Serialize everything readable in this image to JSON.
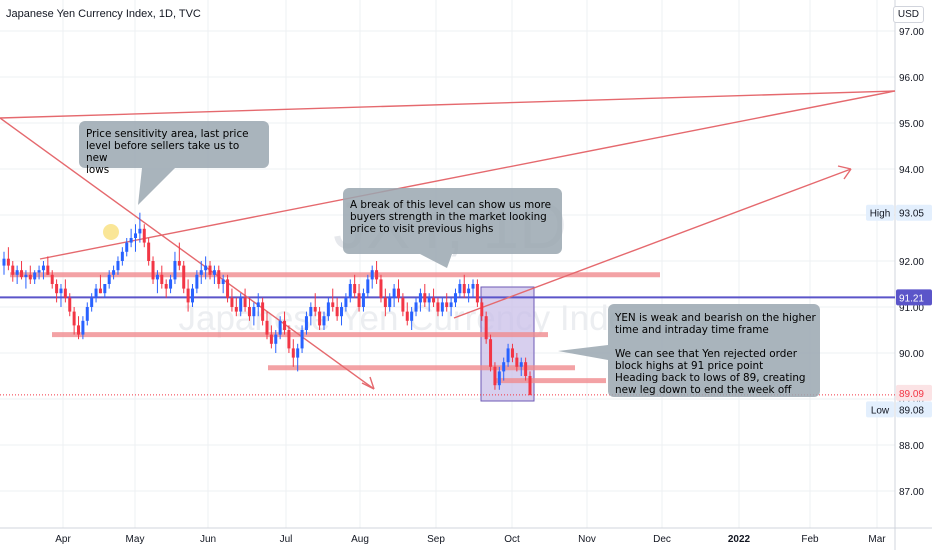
{
  "header": {
    "title": "Japanese Yen Currency Index, 1D, TVC",
    "currency": "USD"
  },
  "watermark": {
    "symbol": "JXY, 1D",
    "name": "Japanese Yen Currency Index"
  },
  "colors": {
    "up": "#2962ff",
    "down": "#f23645",
    "annotation": "#e5696e",
    "zone": "#f08b8e",
    "callout_bg": "#9aa7b0",
    "box_fill": "#c9bfe8",
    "box_stroke": "#6e5ab6",
    "price_line": "#5b55c9",
    "grid": "#eef0f3"
  },
  "chart_data": {
    "type": "candlestick",
    "title": "Japanese Yen Currency Index, 1D, TVC",
    "ylim": [
      86.3,
      97.4
    ],
    "y_ticks": [
      "97.00",
      "96.00",
      "95.00",
      "94.00",
      "93.00",
      "92.00",
      "91.00",
      "90.00",
      "89.00",
      "88.00",
      "87.00"
    ],
    "x_ticks": [
      "Apr",
      "May",
      "Jun",
      "Jul",
      "Aug",
      "Sep",
      "Oct",
      "Nov",
      "Dec",
      "2022",
      "Feb",
      "Mar"
    ],
    "price_labels": {
      "high_label": "High",
      "high_value": "93.05",
      "current_value": "91.21",
      "last_value": "89.09",
      "low_label": "Low",
      "low_value": "89.08"
    },
    "candles_ohlc": [
      [
        91.9,
        92.2,
        91.7,
        92.05
      ],
      [
        92.05,
        92.3,
        91.8,
        91.9
      ],
      [
        91.9,
        92.0,
        91.55,
        91.7
      ],
      [
        91.7,
        91.9,
        91.5,
        91.8
      ],
      [
        91.8,
        92.0,
        91.6,
        91.65
      ],
      [
        91.65,
        91.8,
        91.4,
        91.7
      ],
      [
        91.7,
        91.9,
        91.5,
        91.6
      ],
      [
        91.6,
        91.8,
        91.5,
        91.75
      ],
      [
        91.75,
        91.9,
        91.6,
        91.8
      ],
      [
        91.8,
        92.0,
        91.6,
        91.9
      ],
      [
        91.9,
        92.1,
        91.7,
        91.7
      ],
      [
        91.7,
        91.8,
        91.4,
        91.5
      ],
      [
        91.5,
        91.6,
        91.1,
        91.3
      ],
      [
        91.3,
        91.5,
        91.0,
        91.4
      ],
      [
        91.4,
        91.6,
        91.1,
        91.2
      ],
      [
        91.2,
        91.3,
        90.8,
        90.9
      ],
      [
        90.9,
        91.0,
        90.4,
        90.6
      ],
      [
        90.6,
        90.8,
        90.3,
        90.4
      ],
      [
        90.4,
        90.8,
        90.3,
        90.7
      ],
      [
        90.7,
        91.1,
        90.6,
        91.0
      ],
      [
        91.0,
        91.3,
        90.9,
        91.2
      ],
      [
        91.2,
        91.5,
        91.1,
        91.4
      ],
      [
        91.4,
        91.7,
        91.3,
        91.3
      ],
      [
        91.3,
        91.5,
        91.2,
        91.5
      ],
      [
        91.5,
        91.8,
        91.4,
        91.7
      ],
      [
        91.7,
        91.9,
        91.6,
        91.8
      ],
      [
        91.8,
        92.1,
        91.7,
        92.0
      ],
      [
        92.0,
        92.3,
        91.9,
        92.2
      ],
      [
        92.2,
        92.5,
        92.1,
        92.4
      ],
      [
        92.4,
        92.7,
        92.3,
        92.5
      ],
      [
        92.5,
        92.8,
        92.2,
        92.6
      ],
      [
        92.6,
        93.05,
        92.4,
        92.7
      ],
      [
        92.7,
        92.8,
        92.3,
        92.4
      ],
      [
        92.4,
        92.5,
        91.9,
        92.0
      ],
      [
        92.0,
        92.1,
        91.5,
        91.6
      ],
      [
        91.6,
        91.8,
        91.3,
        91.7
      ],
      [
        91.7,
        91.9,
        91.4,
        91.5
      ],
      [
        91.5,
        91.6,
        91.2,
        91.4
      ],
      [
        91.4,
        91.7,
        91.3,
        91.6
      ],
      [
        91.6,
        92.2,
        91.5,
        92.0
      ],
      [
        92.0,
        92.4,
        91.8,
        91.9
      ],
      [
        91.9,
        92.0,
        91.3,
        91.4
      ],
      [
        91.4,
        91.6,
        90.9,
        91.1
      ],
      [
        91.1,
        91.5,
        91.0,
        91.4
      ],
      [
        91.4,
        91.8,
        91.3,
        91.7
      ],
      [
        91.7,
        92.0,
        91.5,
        91.8
      ],
      [
        91.8,
        92.1,
        91.6,
        91.9
      ],
      [
        91.9,
        92.0,
        91.6,
        91.7
      ],
      [
        91.7,
        91.9,
        91.5,
        91.8
      ],
      [
        91.8,
        91.9,
        91.4,
        91.5
      ],
      [
        91.5,
        91.7,
        91.3,
        91.6
      ],
      [
        91.6,
        91.7,
        91.1,
        91.2
      ],
      [
        91.2,
        91.4,
        90.9,
        91.0
      ],
      [
        91.0,
        91.2,
        90.8,
        90.9
      ],
      [
        90.9,
        91.3,
        90.8,
        91.2
      ],
      [
        91.2,
        91.4,
        90.9,
        91.0
      ],
      [
        91.0,
        91.2,
        90.7,
        90.8
      ],
      [
        90.8,
        91.1,
        90.6,
        91.0
      ],
      [
        91.0,
        91.3,
        90.8,
        91.1
      ],
      [
        91.1,
        91.2,
        90.6,
        90.7
      ],
      [
        90.7,
        90.9,
        90.3,
        90.4
      ],
      [
        90.4,
        90.6,
        90.1,
        90.2
      ],
      [
        90.2,
        90.5,
        90.0,
        90.4
      ],
      [
        90.4,
        90.8,
        90.3,
        90.7
      ],
      [
        90.7,
        90.9,
        90.4,
        90.5
      ],
      [
        90.5,
        90.6,
        90.0,
        90.1
      ],
      [
        90.1,
        90.3,
        89.7,
        89.9
      ],
      [
        89.9,
        90.2,
        89.6,
        90.1
      ],
      [
        90.1,
        90.6,
        90.0,
        90.5
      ],
      [
        90.5,
        90.9,
        90.4,
        90.8
      ],
      [
        90.8,
        91.1,
        90.6,
        91.0
      ],
      [
        91.0,
        91.3,
        90.8,
        90.9
      ],
      [
        90.9,
        91.0,
        90.5,
        90.6
      ],
      [
        90.6,
        90.9,
        90.5,
        90.8
      ],
      [
        90.8,
        91.2,
        90.7,
        91.1
      ],
      [
        91.1,
        91.4,
        90.9,
        91.0
      ],
      [
        91.0,
        91.2,
        90.7,
        90.8
      ],
      [
        90.8,
        91.1,
        90.6,
        91.0
      ],
      [
        91.0,
        91.3,
        90.9,
        91.2
      ],
      [
        91.2,
        91.6,
        91.1,
        91.5
      ],
      [
        91.5,
        91.7,
        91.2,
        91.3
      ],
      [
        91.3,
        91.5,
        90.9,
        91.0
      ],
      [
        91.0,
        91.4,
        90.9,
        91.3
      ],
      [
        91.3,
        91.7,
        91.2,
        91.6
      ],
      [
        91.6,
        91.9,
        91.4,
        91.8
      ],
      [
        91.8,
        92.0,
        91.5,
        91.6
      ],
      [
        91.6,
        91.7,
        91.1,
        91.2
      ],
      [
        91.2,
        91.4,
        90.8,
        91.0
      ],
      [
        91.0,
        91.3,
        90.9,
        91.2
      ],
      [
        91.2,
        91.5,
        91.0,
        91.4
      ],
      [
        91.4,
        91.6,
        91.1,
        91.2
      ],
      [
        91.2,
        91.3,
        90.8,
        90.9
      ],
      [
        90.9,
        91.1,
        90.6,
        90.7
      ],
      [
        90.7,
        91.0,
        90.5,
        90.9
      ],
      [
        90.9,
        91.2,
        90.8,
        91.1
      ],
      [
        91.1,
        91.4,
        90.9,
        91.3
      ],
      [
        91.3,
        91.5,
        91.0,
        91.1
      ],
      [
        91.1,
        91.3,
        90.9,
        91.2
      ],
      [
        91.2,
        91.4,
        91.0,
        91.1
      ],
      [
        91.1,
        91.2,
        90.8,
        90.9
      ],
      [
        90.9,
        91.2,
        90.8,
        91.1
      ],
      [
        91.1,
        91.3,
        90.9,
        91.0
      ],
      [
        91.0,
        91.2,
        90.8,
        91.1
      ],
      [
        91.1,
        91.4,
        91.0,
        91.3
      ],
      [
        91.3,
        91.6,
        91.2,
        91.5
      ],
      [
        91.5,
        91.7,
        91.2,
        91.3
      ],
      [
        91.3,
        91.5,
        91.1,
        91.4
      ],
      [
        91.4,
        91.6,
        91.2,
        91.5
      ],
      [
        91.5,
        91.6,
        91.0,
        91.1
      ],
      [
        91.1,
        91.2,
        90.7,
        90.8
      ],
      [
        90.8,
        90.9,
        90.2,
        90.3
      ],
      [
        90.3,
        90.4,
        89.6,
        89.7
      ],
      [
        89.7,
        89.8,
        89.2,
        89.3
      ],
      [
        89.3,
        89.7,
        89.2,
        89.6
      ],
      [
        89.6,
        89.9,
        89.4,
        89.8
      ],
      [
        89.8,
        90.2,
        89.7,
        90.1
      ],
      [
        90.1,
        90.2,
        89.8,
        89.9
      ],
      [
        89.9,
        90.0,
        89.6,
        89.7
      ],
      [
        89.7,
        89.9,
        89.5,
        89.8
      ],
      [
        89.8,
        89.9,
        89.4,
        89.5
      ],
      [
        89.5,
        89.6,
        89.08,
        89.09
      ]
    ]
  },
  "annotations": [
    {
      "id": "callout-1",
      "text": "Price sensitivity area, last price\nlevel before sellers take us to new\nlows"
    },
    {
      "id": "callout-2",
      "text": "A break of this level can show us more\nbuyers strength in the market looking\nprice to visit previous highs"
    },
    {
      "id": "callout-3",
      "text": "YEN is weak and bearish on the higher\ntime and intraday time frame\n\nWe can see that Yen rejected order\nblock highs at 91 price point\nHeading back to lows of 89, creating\nnew leg down to end the week off"
    }
  ]
}
